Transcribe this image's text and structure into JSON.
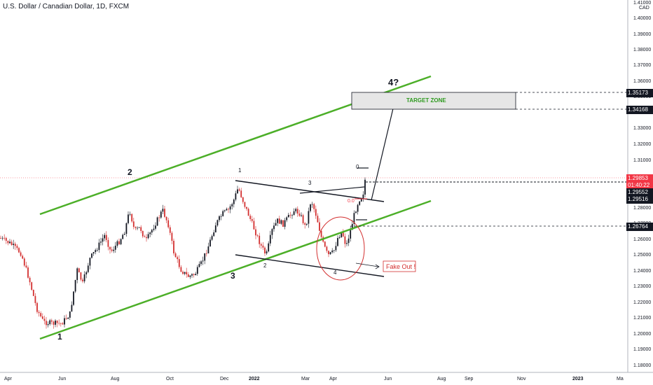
{
  "header": {
    "title": "U.S. Dollar / Canadian Dollar, 1D, FXCM"
  },
  "price_axis": {
    "currency": "CAD",
    "ticks": [
      "1.41000",
      "1.40000",
      "1.39000",
      "1.38000",
      "1.37000",
      "1.36000",
      "1.35000",
      "1.34000",
      "1.33000",
      "1.32000",
      "1.31000",
      "1.30000",
      "1.29000",
      "1.28000",
      "1.27000",
      "1.26000",
      "1.25000",
      "1.24000",
      "1.23000",
      "1.22000",
      "1.21000",
      "1.20000",
      "1.19000",
      "1.18000"
    ],
    "markers": {
      "level_top": "1.35173",
      "level_target": "1.34168",
      "current_price": "1.29853",
      "countdown": "01:40:22",
      "level_a": "1.29552",
      "level_b": "1.29516",
      "level_support": "1.26764"
    }
  },
  "time_axis": {
    "ticks": [
      "Apr",
      "Jun",
      "Aug",
      "Oct",
      "Dec",
      "2022",
      "Mar",
      "Apr",
      "Jun",
      "Aug",
      "Sep",
      "Nov",
      "2023",
      "Ma"
    ]
  },
  "annotations": {
    "target_zone": "TARGET ZONE",
    "fake_out": "Fake Out !",
    "wave_1": "1",
    "wave_2": "2",
    "wave_3": "3",
    "wave_4": "4?",
    "sub_1": "1",
    "sub_2": "2",
    "sub_3": "3",
    "sub_4": "4",
    "fib_0": "0",
    "fib_level": "0.0"
  },
  "colors": {
    "up": "#131722",
    "down": "#d32f2f",
    "channel": "#4caf28",
    "ellipse": "#d32f2f",
    "price_line": "#f23645"
  }
}
